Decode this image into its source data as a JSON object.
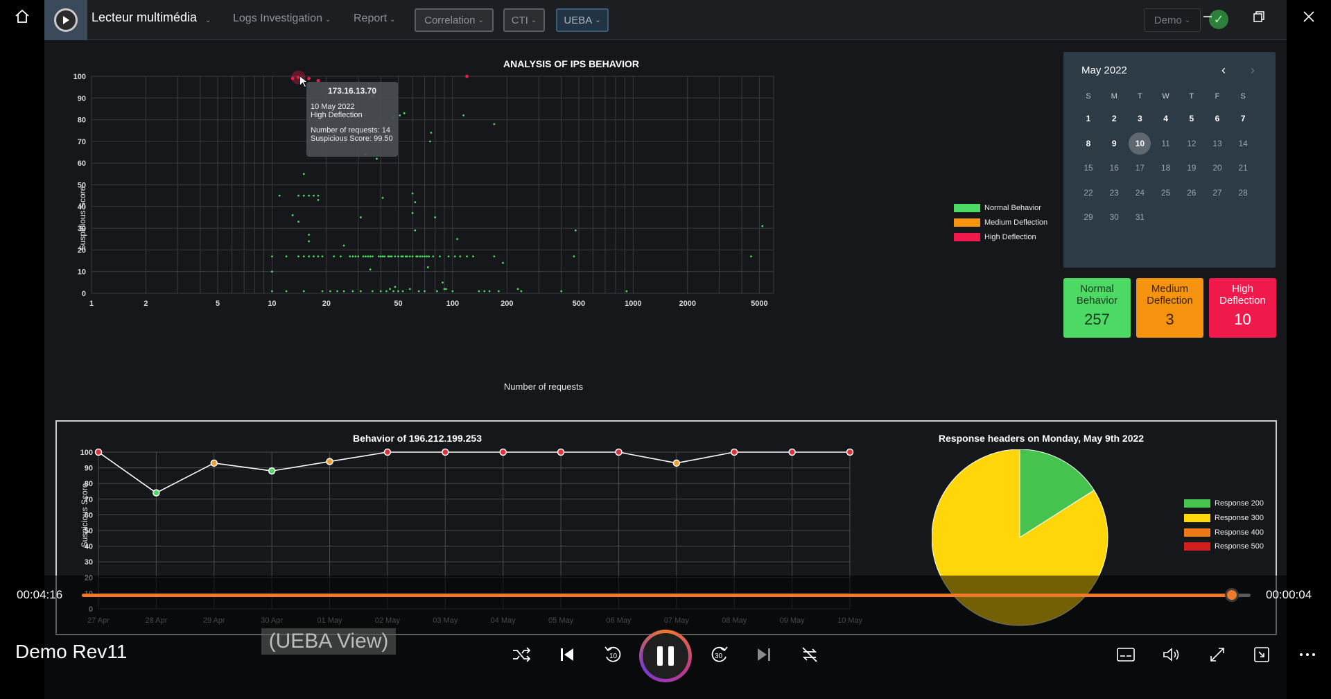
{
  "player": {
    "media_title": "Demo Rev11",
    "time_elapsed": "00:04:16",
    "time_remaining": "00:00:04",
    "progress": 0.984,
    "caption": "(UEBA View)"
  },
  "app": {
    "title": "Lecteur multimédia",
    "nav": [
      {
        "label": "Logs Investigation"
      },
      {
        "label": "Report"
      },
      {
        "label": "Correlation"
      },
      {
        "label": "CTI"
      },
      {
        "label": "UEBA"
      }
    ],
    "user_select": "Demo"
  },
  "scatter": {
    "title": "ANALYSIS OF IPS BEHAVIOR",
    "xlabel": "Number of requests",
    "ylabel": "Suspicious Score",
    "xticks": [
      "1",
      "2",
      "5",
      "10",
      "20",
      "50",
      "100",
      "200",
      "500",
      "1000",
      "2000",
      "5000"
    ],
    "yticks": [
      "100",
      "90",
      "80",
      "70",
      "60",
      "50",
      "40",
      "30",
      "20",
      "10",
      "0"
    ],
    "legend": [
      "Normal Behavior",
      "Medium Deflection",
      "High Deflection"
    ],
    "tooltip": {
      "ip": "173.16.13.70",
      "date": "10 May 2022",
      "category": "High Deflection",
      "requests": "Number of requests: 14",
      "score": "Suspicious Score: 99.50"
    }
  },
  "calendar": {
    "month": "May 2022",
    "dow": [
      "S",
      "M",
      "T",
      "W",
      "T",
      "F",
      "S"
    ],
    "days": [
      "1",
      "2",
      "3",
      "4",
      "5",
      "6",
      "7",
      "8",
      "9",
      "10",
      "11",
      "12",
      "13",
      "14",
      "15",
      "16",
      "17",
      "18",
      "19",
      "20",
      "21",
      "22",
      "23",
      "24",
      "25",
      "26",
      "27",
      "28",
      "29",
      "30",
      "31"
    ],
    "selected": "10"
  },
  "stats": [
    {
      "label": "Normal Behavior",
      "value": "257",
      "color": "#4cd964"
    },
    {
      "label": "Medium Deflection",
      "value": "3",
      "color": "#f7940f"
    },
    {
      "label": "High Deflection",
      "value": "10",
      "color": "#f0194b"
    }
  ],
  "line_chart": {
    "title": "Behavior of 196.212.199.253",
    "ylabel": "Suspicious Score",
    "yticks": [
      "100",
      "90",
      "80",
      "70",
      "60",
      "50",
      "40",
      "30",
      "20",
      "10",
      "0"
    ]
  },
  "pie": {
    "title": "Response headers on Monday, May 9th 2022",
    "legend": [
      "Response 200",
      "Response 300",
      "Response 400",
      "Response 500"
    ]
  },
  "chart_data": [
    {
      "type": "scatter",
      "title": "ANALYSIS OF IPS BEHAVIOR",
      "xlabel": "Number of requests",
      "ylabel": "Suspicious Score",
      "xscale": "log",
      "xlim": [
        1,
        6000
      ],
      "ylim": [
        0,
        100
      ],
      "grid": true,
      "legend_position": "right",
      "series": [
        {
          "name": "Normal Behavior",
          "color": "#4cd964",
          "points": [
            [
              10,
              1
            ],
            [
              10,
              10
            ],
            [
              10,
              17
            ],
            [
              11,
              45
            ],
            [
              12,
              1
            ],
            [
              12,
              17
            ],
            [
              13,
              36
            ],
            [
              14,
              17
            ],
            [
              14,
              33
            ],
            [
              14,
              45
            ],
            [
              15,
              1
            ],
            [
              15,
              17
            ],
            [
              15,
              45
            ],
            [
              15,
              55
            ],
            [
              16,
              17
            ],
            [
              16,
              24
            ],
            [
              16,
              27
            ],
            [
              16,
              45
            ],
            [
              17,
              17
            ],
            [
              17,
              45
            ],
            [
              18,
              17
            ],
            [
              18,
              43
            ],
            [
              18,
              45
            ],
            [
              19,
              1
            ],
            [
              19,
              17
            ],
            [
              21,
              1
            ],
            [
              22,
              17
            ],
            [
              23,
              1
            ],
            [
              24,
              17
            ],
            [
              25,
              1
            ],
            [
              25,
              22
            ],
            [
              27,
              17
            ],
            [
              28,
              1
            ],
            [
              28,
              17
            ],
            [
              29,
              17
            ],
            [
              30,
              17
            ],
            [
              31,
              1
            ],
            [
              31,
              35
            ],
            [
              32,
              17
            ],
            [
              33,
              17
            ],
            [
              33,
              64
            ],
            [
              34,
              17
            ],
            [
              35,
              11
            ],
            [
              35,
              17
            ],
            [
              36,
              1
            ],
            [
              36,
              17
            ],
            [
              38,
              62
            ],
            [
              39,
              17
            ],
            [
              40,
              1
            ],
            [
              40,
              17
            ],
            [
              41,
              44
            ],
            [
              41,
              17
            ],
            [
              42,
              17
            ],
            [
              43,
              1
            ],
            [
              44,
              17
            ],
            [
              45,
              2
            ],
            [
              45,
              17
            ],
            [
              46,
              17
            ],
            [
              47,
              1
            ],
            [
              47,
              81
            ],
            [
              48,
              3
            ],
            [
              48,
              17
            ],
            [
              50,
              1
            ],
            [
              50,
              17
            ],
            [
              51,
              82
            ],
            [
              52,
              17
            ],
            [
              53,
              1
            ],
            [
              53,
              17
            ],
            [
              54,
              83
            ],
            [
              55,
              17
            ],
            [
              56,
              17
            ],
            [
              58,
              17
            ],
            [
              58,
              2
            ],
            [
              60,
              46
            ],
            [
              60,
              17
            ],
            [
              60,
              37
            ],
            [
              62,
              42
            ],
            [
              62,
              29
            ],
            [
              63,
              17
            ],
            [
              64,
              17
            ],
            [
              65,
              1
            ],
            [
              66,
              17
            ],
            [
              68,
              17
            ],
            [
              70,
              1
            ],
            [
              70,
              17
            ],
            [
              72,
              17
            ],
            [
              73,
              12
            ],
            [
              74,
              17
            ],
            [
              75,
              70
            ],
            [
              76,
              74
            ],
            [
              78,
              17
            ],
            [
              80,
              35
            ],
            [
              82,
              1
            ],
            [
              85,
              17
            ],
            [
              88,
              5
            ],
            [
              90,
              2
            ],
            [
              92,
              2
            ],
            [
              95,
              17
            ],
            [
              100,
              1
            ],
            [
              103,
              17
            ],
            [
              106,
              25
            ],
            [
              110,
              17
            ],
            [
              115,
              82
            ],
            [
              120,
              17
            ],
            [
              130,
              17
            ],
            [
              140,
              1
            ],
            [
              150,
              1
            ],
            [
              160,
              1
            ],
            [
              170,
              17
            ],
            [
              170,
              78
            ],
            [
              180,
              1
            ],
            [
              190,
              14
            ],
            [
              230,
              2
            ],
            [
              240,
              1
            ],
            [
              400,
              1
            ],
            [
              470,
              17
            ],
            [
              480,
              29
            ],
            [
              920,
              1
            ],
            [
              4500,
              17
            ],
            [
              5200,
              31
            ]
          ]
        },
        {
          "name": "Medium Deflection",
          "color": "#f7940f",
          "points": [
            [
              36,
              91
            ]
          ]
        },
        {
          "name": "High Deflection",
          "color": "#f0194b",
          "points": [
            [
              13,
              99
            ],
            [
              14,
              99.5
            ],
            [
              15,
              98
            ],
            [
              16,
              99
            ],
            [
              18,
              98
            ],
            [
              120,
              100
            ]
          ]
        }
      ]
    },
    {
      "type": "line",
      "title": "Behavior of 196.212.199.253",
      "ylabel": "Suspicious Score",
      "ylim": [
        0,
        100
      ],
      "categories": [
        "27 Apr",
        "28 Apr",
        "29 Apr",
        "30 Apr",
        "01 May",
        "02 May",
        "03 May",
        "04 May",
        "05 May",
        "06 May",
        "07 May",
        "08 May",
        "09 May",
        "10 May"
      ],
      "series": [
        {
          "values": [
            100,
            74,
            93,
            88,
            94,
            100,
            100,
            100,
            100,
            100,
            93,
            100,
            100,
            100
          ]
        }
      ]
    },
    {
      "type": "pie",
      "title": "Response headers on Monday, May 9th 2022",
      "legend_position": "right",
      "slices": [
        {
          "name": "Response 200",
          "value": 16,
          "color": "#46c34f"
        },
        {
          "name": "Response 300",
          "value": 84,
          "color": "#ffd60a"
        },
        {
          "name": "Response 400",
          "value": 0,
          "color": "#f07a1a"
        },
        {
          "name": "Response 500",
          "value": 0,
          "color": "#d11f1f"
        }
      ]
    }
  ]
}
